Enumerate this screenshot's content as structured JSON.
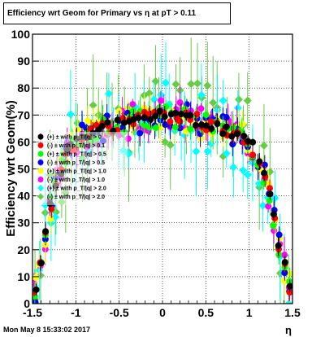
{
  "title": "Efficiency wrt Geom for Primary vs   η at pT > 0.11",
  "timestamp": "Mon May  8 15:33:02 2017",
  "chart_data": {
    "type": "scatter",
    "title": "Efficiency wrt Geom for Primary vs   η at pT > 0.11",
    "xlabel": "η",
    "ylabel": "Efficiency wrt Geom(%)",
    "xlim": [
      -1.5,
      1.5
    ],
    "ylim": [
      0,
      100
    ],
    "xticks": [
      "-1.5",
      "-1",
      "-0.5",
      "0",
      "0.5",
      "1",
      "1.5"
    ],
    "yticks": [
      "0",
      "10",
      "20",
      "30",
      "40",
      "50",
      "60",
      "70",
      "80",
      "90",
      "100"
    ],
    "grid": true,
    "legend_position": "left-middle",
    "series": [
      {
        "name": "(+) ± with p_T/|q| > 0",
        "color": "#000000",
        "marker": "circle",
        "seed": 1,
        "spread": 2,
        "err": 3
      },
      {
        "name": "(-) ± with p_T/|q| > 0.1",
        "color": "#ff0000",
        "marker": "circle",
        "seed": 2,
        "spread": 3,
        "err": 3
      },
      {
        "name": "(+) ± with p_T/|q| > 0.5",
        "color": "#00ff00",
        "marker": "circle",
        "seed": 3,
        "spread": 4,
        "err": 4
      },
      {
        "name": "(-) ± with p_T/|q| > 0.5",
        "color": "#0000ff",
        "marker": "circle",
        "seed": 4,
        "spread": 5,
        "err": 4
      },
      {
        "name": "(+) ± with p_T/|q| > 1.0",
        "color": "#ffff00",
        "marker": "circle",
        "seed": 5,
        "spread": 6,
        "err": 5
      },
      {
        "name": "(-) ± with p_T/|q| > 1.0",
        "color": "#ff00ff",
        "marker": "circle",
        "seed": 6,
        "spread": 6,
        "err": 5
      },
      {
        "name": "(+) ± with p_T/|q| > 2.0",
        "color": "#00ffff",
        "marker": "diamond",
        "seed": 7,
        "spread": 14,
        "err": 12
      },
      {
        "name": "(-) ± with p_T/|q| > 2.0",
        "color": "#66cc44",
        "marker": "diamond",
        "seed": 8,
        "spread": 16,
        "err": 14
      }
    ],
    "x": [
      -1.47,
      -1.41,
      -1.35,
      -1.29,
      -1.23,
      -1.17,
      -1.11,
      -1.05,
      -0.99,
      -0.93,
      -0.87,
      -0.81,
      -0.75,
      -0.69,
      -0.63,
      -0.57,
      -0.51,
      -0.45,
      -0.39,
      -0.33,
      -0.27,
      -0.21,
      -0.15,
      -0.09,
      -0.03,
      0.03,
      0.09,
      0.15,
      0.21,
      0.27,
      0.33,
      0.39,
      0.45,
      0.51,
      0.57,
      0.63,
      0.69,
      0.75,
      0.81,
      0.87,
      0.93,
      0.99,
      1.05,
      1.11,
      1.17,
      1.23,
      1.29,
      1.35,
      1.41,
      1.47
    ],
    "base_curve": [
      5,
      14,
      26,
      36,
      44,
      50,
      55,
      58,
      60,
      62,
      63,
      64,
      65,
      65,
      66,
      66,
      67,
      67,
      67,
      68,
      68,
      69,
      69,
      69,
      70,
      70,
      70,
      69,
      69,
      69,
      68,
      68,
      67,
      67,
      66,
      66,
      65,
      65,
      64,
      63,
      62,
      60,
      58,
      54,
      48,
      40,
      32,
      22,
      14,
      6
    ]
  }
}
